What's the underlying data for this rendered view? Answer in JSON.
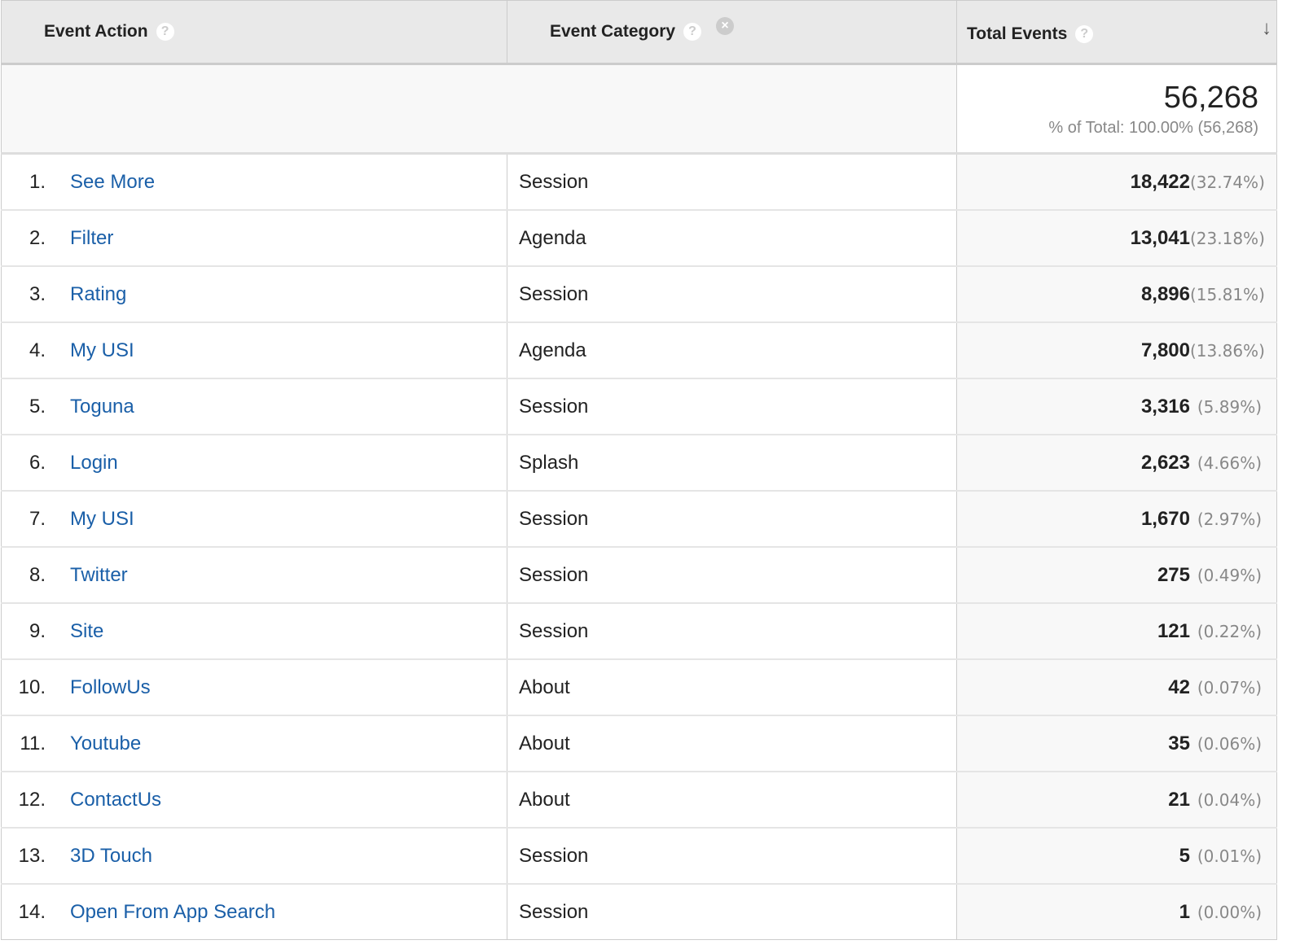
{
  "header": {
    "event_action": "Event Action",
    "event_category": "Event Category",
    "total_events": "Total Events",
    "help": "?",
    "remove": "×",
    "sort": "↓"
  },
  "totals": {
    "value": "56,268",
    "percent": "% of Total: 100.00% (56,268)"
  },
  "rows": [
    {
      "n": "1.",
      "action": "See More",
      "category": "Session",
      "value": "18,422",
      "pct": "(32.74%)"
    },
    {
      "n": "2.",
      "action": "Filter",
      "category": "Agenda",
      "value": "13,041",
      "pct": "(23.18%)"
    },
    {
      "n": "3.",
      "action": "Rating",
      "category": "Session",
      "value": "8,896",
      "pct": "(15.81%)"
    },
    {
      "n": "4.",
      "action": "My USI",
      "category": "Agenda",
      "value": "7,800",
      "pct": "(13.86%)"
    },
    {
      "n": "5.",
      "action": "Toguna",
      "category": "Session",
      "value": "3,316",
      "pct": "(5.89%)"
    },
    {
      "n": "6.",
      "action": "Login",
      "category": "Splash",
      "value": "2,623",
      "pct": "(4.66%)"
    },
    {
      "n": "7.",
      "action": "My USI",
      "category": "Session",
      "value": "1,670",
      "pct": "(2.97%)"
    },
    {
      "n": "8.",
      "action": "Twitter",
      "category": "Session",
      "value": "275",
      "pct": "(0.49%)"
    },
    {
      "n": "9.",
      "action": "Site",
      "category": "Session",
      "value": "121",
      "pct": "(0.22%)"
    },
    {
      "n": "10.",
      "action": "FollowUs",
      "category": "About",
      "value": "42",
      "pct": "(0.07%)"
    },
    {
      "n": "11.",
      "action": "Youtube",
      "category": "About",
      "value": "35",
      "pct": "(0.06%)"
    },
    {
      "n": "12.",
      "action": "ContactUs",
      "category": "About",
      "value": "21",
      "pct": "(0.04%)"
    },
    {
      "n": "13.",
      "action": "3D Touch",
      "category": "Session",
      "value": "5",
      "pct": "(0.01%)"
    },
    {
      "n": "14.",
      "action": "Open From App Search",
      "category": "Session",
      "value": "1",
      "pct": "(0.00%)"
    }
  ]
}
